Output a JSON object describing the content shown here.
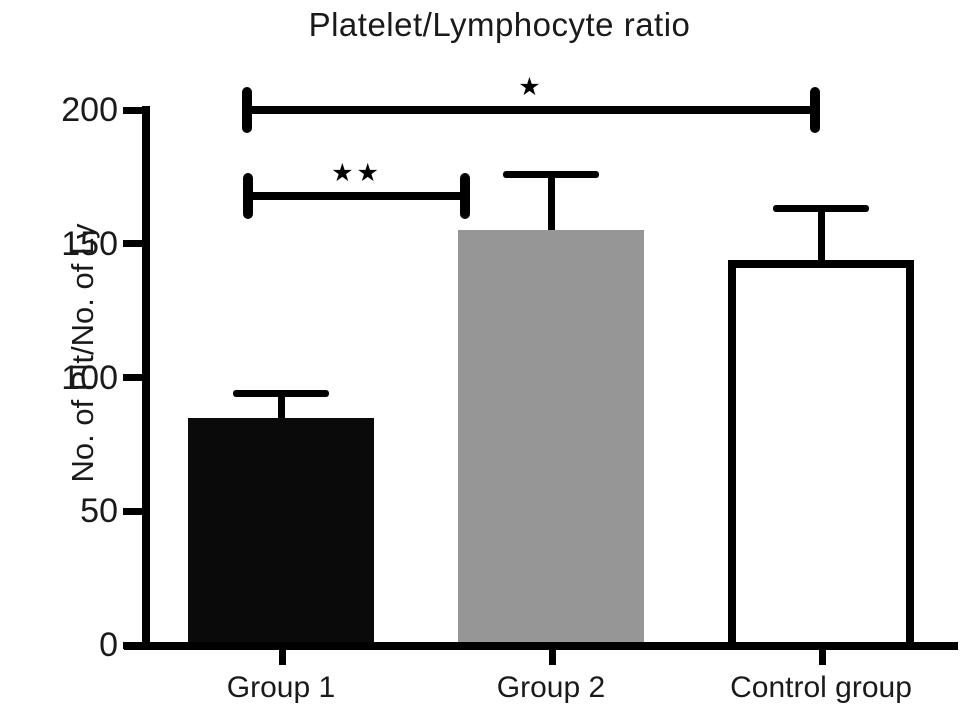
{
  "chart_data": {
    "type": "bar",
    "title": "Platelet/Lymphocyte ratio",
    "xlabel": "",
    "ylabel": "No. of Plt/No. of Ly",
    "categories": [
      "Group 1",
      "Group 2",
      "Control group"
    ],
    "values": [
      85,
      155,
      144
    ],
    "errors_upper": [
      9,
      21,
      19
    ],
    "error_tops": [
      94,
      176,
      163
    ],
    "bar_colors": [
      "#0a0a0a",
      "#969696",
      "#ffffff"
    ],
    "bar_outlined": [
      false,
      false,
      true
    ],
    "ylim": [
      0,
      200
    ],
    "yticks": [
      0,
      50,
      100,
      150,
      200
    ],
    "grid": false,
    "legend": null,
    "axis_color": "#000000",
    "annotations": [
      {
        "between": [
          "Group 1",
          "Control group"
        ],
        "pair": [
          0,
          2
        ],
        "label": "*",
        "level": 200
      },
      {
        "between": [
          "Group 1",
          "Group 2"
        ],
        "pair": [
          0,
          1
        ],
        "label": "**",
        "level": 168
      }
    ]
  }
}
